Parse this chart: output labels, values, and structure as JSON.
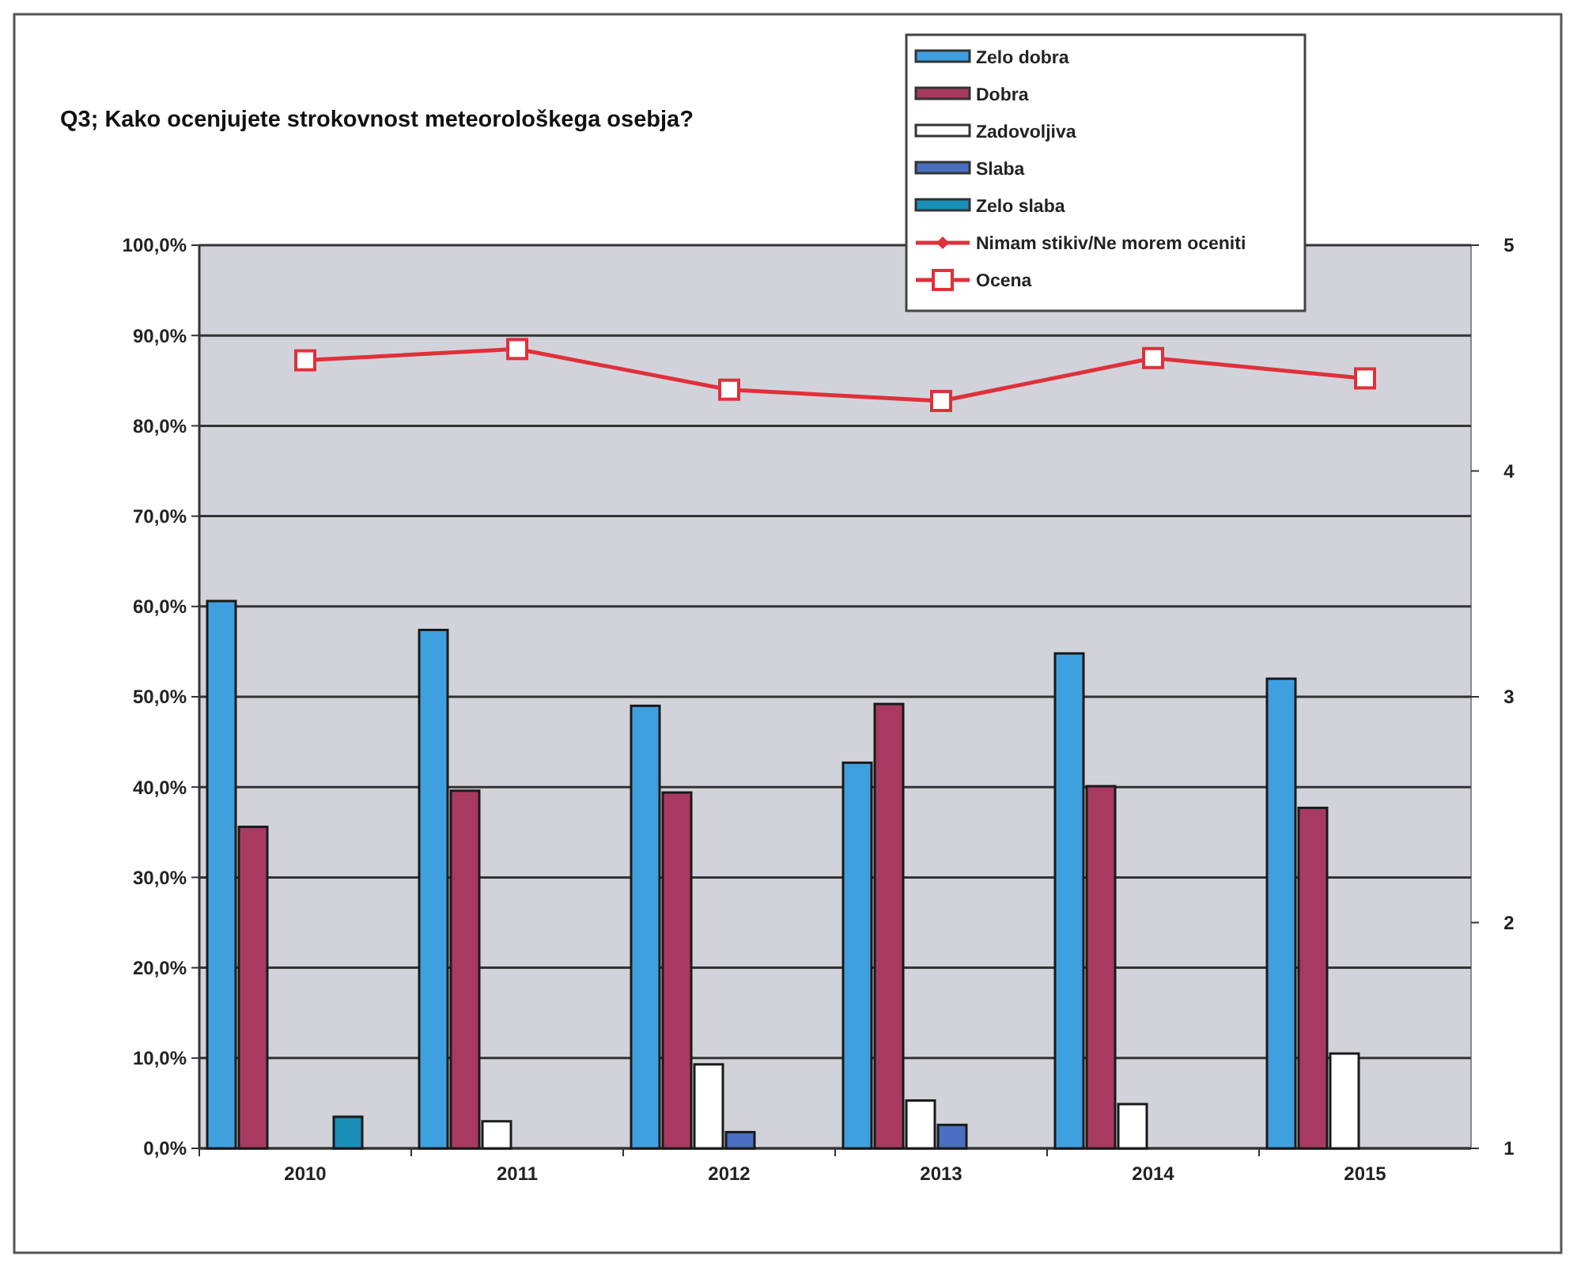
{
  "chart_data": {
    "type": "bar",
    "title": "Q3; Kako ocenjujete strokovnost meteorološkega osebja?",
    "categories": [
      "2010",
      "2011",
      "2012",
      "2013",
      "2014",
      "2015"
    ],
    "series": [
      {
        "name": "Zelo dobra",
        "color": "#3fa0e0",
        "values": [
          60.6,
          57.4,
          49.0,
          42.7,
          54.8,
          52.0
        ]
      },
      {
        "name": "Dobra",
        "color": "#a83a62",
        "values": [
          35.6,
          39.6,
          39.4,
          49.2,
          40.1,
          37.7
        ]
      },
      {
        "name": "Zadovoljiva",
        "color": "#ffffff",
        "values": [
          0,
          3.0,
          9.3,
          5.3,
          4.9,
          10.5
        ]
      },
      {
        "name": "Slaba",
        "color": "#4a6fc0",
        "values": [
          0,
          0,
          1.8,
          2.6,
          0,
          0
        ]
      },
      {
        "name": "Zelo slaba",
        "color": "#1a8fb8",
        "values": [
          3.5,
          0,
          0,
          0,
          0,
          0
        ]
      },
      {
        "name": "Nimam stikiv/Ne morem oceniti",
        "type": "line",
        "color": "#e0303a",
        "marker": "diamond",
        "values": [
          null,
          null,
          null,
          null,
          null,
          null
        ]
      },
      {
        "name": "Ocena",
        "type": "line",
        "axis": "y2",
        "color": "#e0303a",
        "marker": "square",
        "values": [
          4.49,
          4.54,
          4.36,
          4.31,
          4.5,
          4.41
        ]
      }
    ],
    "ylim": [
      0,
      100
    ],
    "yticks": [
      {
        "value": 0,
        "label": "0,0%"
      },
      {
        "value": 10,
        "label": "10,0%"
      },
      {
        "value": 20,
        "label": "20,0%"
      },
      {
        "value": 30,
        "label": "30,0%"
      },
      {
        "value": 40,
        "label": "40,0%"
      },
      {
        "value": 50,
        "label": "50,0%"
      },
      {
        "value": 60,
        "label": "60,0%"
      },
      {
        "value": 70,
        "label": "70,0%"
      },
      {
        "value": 80,
        "label": "80,0%"
      },
      {
        "value": 90,
        "label": "90,0%"
      },
      {
        "value": 100,
        "label": "100,0%"
      }
    ],
    "y2lim": [
      1,
      5
    ],
    "y2ticks": [
      1,
      2,
      3,
      4,
      5
    ],
    "grid": "y",
    "legend": "top right"
  }
}
